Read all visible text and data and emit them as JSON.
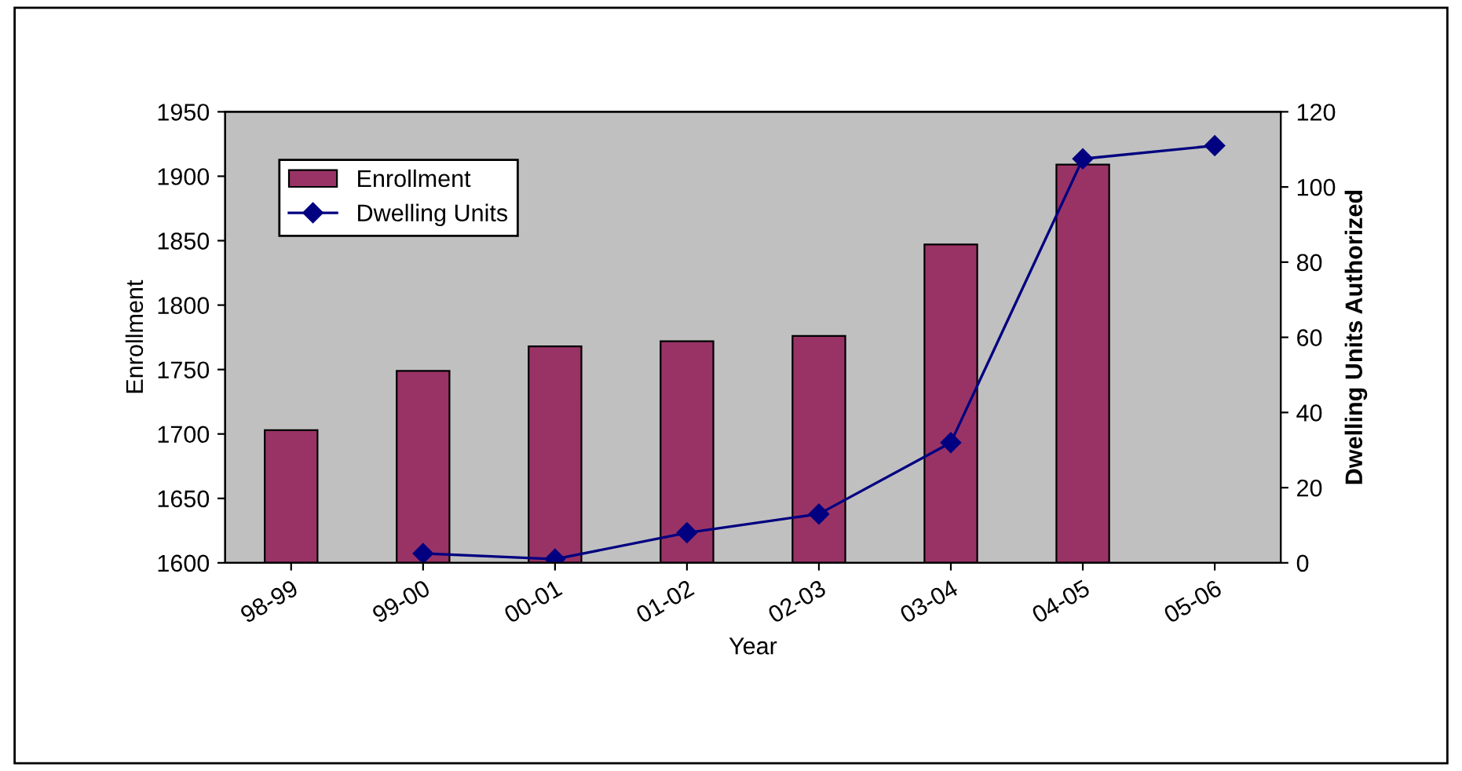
{
  "chart_data": {
    "type": "bar",
    "xlabel": "Year",
    "ylabel": "Enrollment",
    "y2label": "Dwelling Units Authorized",
    "categories": [
      "98-99",
      "99-00",
      "00-01",
      "01-02",
      "02-03",
      "03-04",
      "04-05",
      "05-06"
    ],
    "series": [
      {
        "name": "Enrollment",
        "color": "#993366",
        "values": [
          1703,
          1749,
          1768,
          1772,
          1776,
          1847,
          1909,
          null
        ]
      },
      {
        "name": "Dwelling Units",
        "type": "line",
        "axis": "y2",
        "color": "#000080",
        "marker": "diamond",
        "values": [
          null,
          2.5,
          1,
          8,
          13,
          32,
          107.5,
          111
        ]
      }
    ],
    "ylim": [
      1600,
      1950
    ],
    "yticks": [
      1600,
      1650,
      1700,
      1750,
      1800,
      1850,
      1900,
      1950
    ],
    "y2lim": [
      0,
      120
    ],
    "y2ticks": [
      0,
      20,
      40,
      60,
      80,
      100,
      120
    ],
    "grid": false,
    "legend": "top left"
  }
}
